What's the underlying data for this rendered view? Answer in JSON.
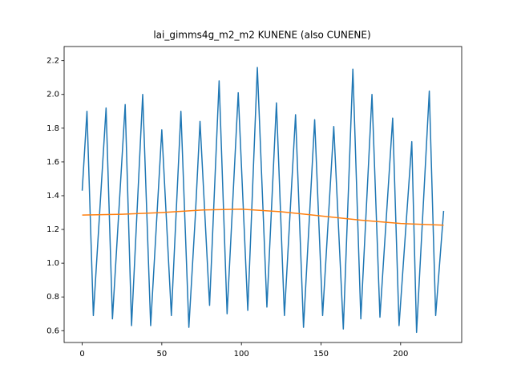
{
  "chart_data": {
    "type": "line",
    "title": "lai_gimms4g_m2_m2 KUNENE (also CUNENE)",
    "xlim": [
      -11.35,
      238.35
    ],
    "ylim": [
      0.53,
      2.284
    ],
    "xticks": [
      0,
      50,
      100,
      150,
      200
    ],
    "yticks": [
      0.6,
      0.8,
      {
        "value": 1.0,
        "label": "1.0"
      },
      1.2,
      1.4,
      1.6,
      1.8,
      {
        "value": 2.0,
        "label": "2.0"
      },
      2.2
    ],
    "series": [
      {
        "color": "#1f77b4",
        "x": [
          0,
          3,
          7,
          15,
          19,
          27,
          31,
          38,
          43,
          50,
          56,
          62,
          67,
          71,
          74,
          80,
          86,
          91,
          98,
          104,
          110,
          116,
          122,
          127,
          134,
          139,
          146,
          151,
          158,
          164,
          170,
          175,
          182,
          187,
          195,
          199,
          207,
          210,
          218,
          222,
          227
        ],
        "values": [
          1.43,
          1.9,
          0.69,
          1.92,
          0.67,
          1.94,
          0.63,
          2.0,
          0.63,
          1.79,
          0.69,
          1.9,
          0.62,
          1.27,
          1.84,
          0.75,
          2.08,
          0.7,
          2.01,
          0.72,
          2.16,
          0.74,
          1.95,
          0.69,
          1.88,
          0.62,
          1.85,
          0.69,
          1.81,
          0.61,
          2.15,
          0.67,
          2.0,
          0.68,
          1.86,
          0.63,
          1.72,
          0.59,
          2.02,
          0.69,
          1.31
        ]
      },
      {
        "color": "#ff7f0e",
        "x": [
          0,
          25,
          50,
          75,
          100,
          125,
          150,
          175,
          200,
          227
        ],
        "values": [
          1.285,
          1.29,
          1.3,
          1.315,
          1.32,
          1.305,
          1.28,
          1.255,
          1.235,
          1.225
        ]
      }
    ]
  }
}
